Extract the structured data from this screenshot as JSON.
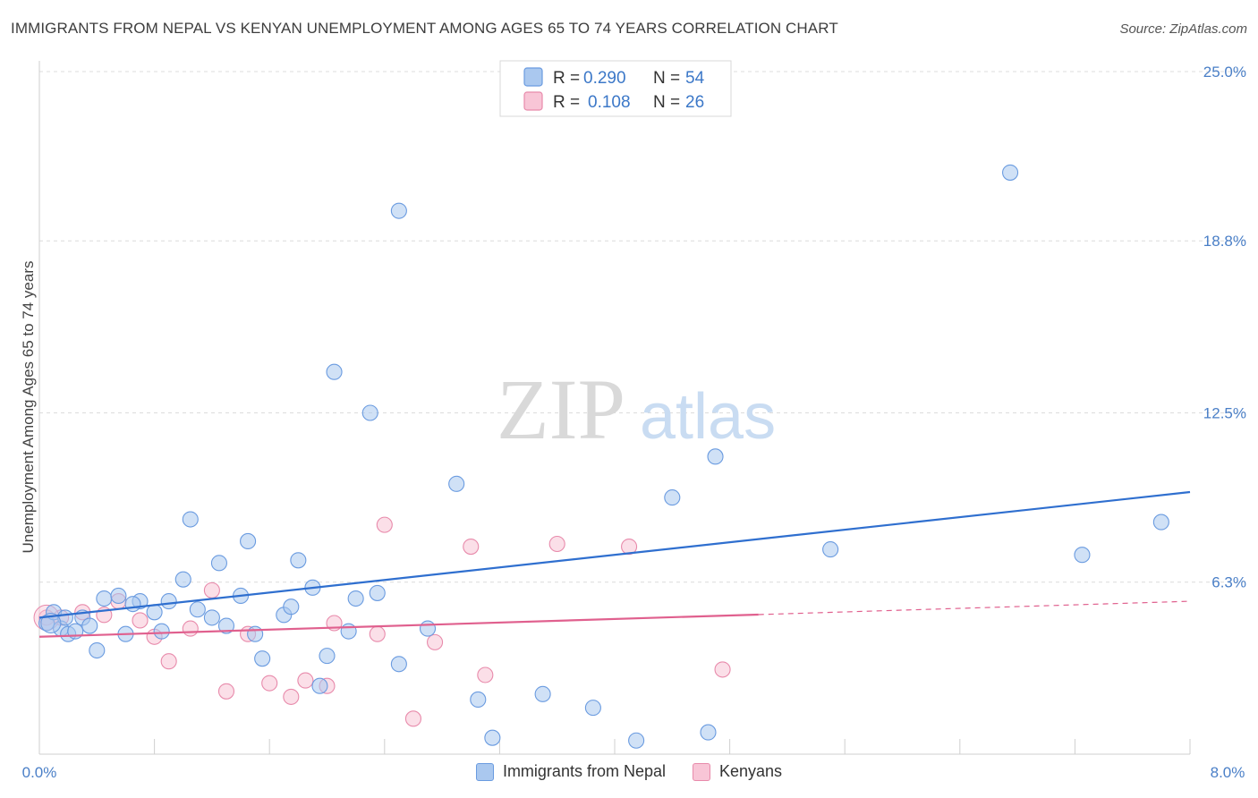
{
  "header": {
    "title": "IMMIGRANTS FROM NEPAL VS KENYAN UNEMPLOYMENT AMONG AGES 65 TO 74 YEARS CORRELATION CHART",
    "source": "Source: ZipAtlas.com"
  },
  "watermark": {
    "zip": "ZIP",
    "atlas": "atlas"
  },
  "legend": {
    "r_label": "R =",
    "n_label": "N =",
    "rows": [
      {
        "r": "0.290",
        "n": "54"
      },
      {
        "r": "0.108",
        "n": "26"
      }
    ]
  },
  "colors": {
    "nepal_fill": "#aac8ef",
    "nepal_stroke": "#6a9be0",
    "nepal_line": "#2f6fcf",
    "kenyan_fill": "#f8c5d6",
    "kenyan_stroke": "#e88aab",
    "kenyan_line": "#e0608e",
    "tick_text": "#4a7fc7",
    "grid": "#dcdcdc"
  },
  "chart_data": {
    "type": "scatter",
    "title": "IMMIGRANTS FROM NEPAL VS KENYAN UNEMPLOYMENT AMONG AGES 65 TO 74 YEARS CORRELATION CHART",
    "xlabel": "",
    "ylabel": "Unemployment Among Ages 65 to 74 years",
    "xlim": [
      0,
      8
    ],
    "ylim": [
      0,
      25
    ],
    "x_tick_labels": [
      "0.0%",
      "8.0%"
    ],
    "y_ticks": [
      6.3,
      12.5,
      18.8,
      25.0
    ],
    "y_tick_labels": [
      "6.3%",
      "12.5%",
      "18.8%",
      "25.0%"
    ],
    "grid": true,
    "series": [
      {
        "name": "Immigrants from Nepal",
        "r": 0.29,
        "n": 54,
        "trend": {
          "x0": 0,
          "y0": 5.0,
          "x1": 8,
          "y1": 9.6,
          "solid_until": 8
        },
        "points": [
          [
            0.05,
            4.8
          ],
          [
            0.1,
            5.2
          ],
          [
            0.15,
            4.6
          ],
          [
            0.2,
            4.4
          ],
          [
            0.3,
            5.0
          ],
          [
            0.35,
            4.7
          ],
          [
            0.45,
            5.7
          ],
          [
            0.55,
            5.8
          ],
          [
            0.6,
            4.4
          ],
          [
            0.7,
            5.6
          ],
          [
            0.8,
            5.2
          ],
          [
            0.85,
            4.5
          ],
          [
            0.9,
            5.6
          ],
          [
            1.0,
            6.4
          ],
          [
            1.05,
            8.6
          ],
          [
            1.1,
            5.3
          ],
          [
            1.2,
            5.0
          ],
          [
            1.25,
            7.0
          ],
          [
            1.3,
            4.7
          ],
          [
            1.4,
            5.8
          ],
          [
            1.45,
            7.8
          ],
          [
            1.5,
            4.4
          ],
          [
            1.55,
            3.5
          ],
          [
            1.7,
            5.1
          ],
          [
            1.75,
            5.4
          ],
          [
            1.8,
            7.1
          ],
          [
            1.9,
            6.1
          ],
          [
            1.95,
            2.5
          ],
          [
            2.0,
            3.6
          ],
          [
            2.05,
            14.0
          ],
          [
            2.15,
            4.5
          ],
          [
            2.2,
            5.7
          ],
          [
            2.3,
            12.5
          ],
          [
            2.35,
            5.9
          ],
          [
            2.5,
            3.3
          ],
          [
            2.5,
            19.9
          ],
          [
            2.7,
            4.6
          ],
          [
            2.9,
            9.9
          ],
          [
            3.05,
            2.0
          ],
          [
            3.15,
            0.6
          ],
          [
            3.5,
            2.2
          ],
          [
            3.85,
            1.7
          ],
          [
            4.15,
            0.5
          ],
          [
            4.4,
            9.4
          ],
          [
            4.65,
            0.8
          ],
          [
            4.7,
            10.9
          ],
          [
            5.5,
            7.5
          ],
          [
            6.75,
            21.3
          ],
          [
            7.25,
            7.3
          ],
          [
            7.8,
            8.5
          ],
          [
            0.18,
            5.0
          ],
          [
            0.25,
            4.5
          ],
          [
            0.4,
            3.8
          ],
          [
            0.65,
            5.5
          ]
        ]
      },
      {
        "name": "Kenyans",
        "r": 0.108,
        "n": 26,
        "trend": {
          "x0": 0,
          "y0": 4.3,
          "x1": 8,
          "y1": 5.6,
          "solid_until": 5.0
        },
        "points": [
          [
            0.05,
            5.0
          ],
          [
            0.15,
            5.0
          ],
          [
            0.3,
            5.2
          ],
          [
            0.45,
            5.1
          ],
          [
            0.55,
            5.6
          ],
          [
            0.7,
            4.9
          ],
          [
            0.8,
            4.3
          ],
          [
            0.9,
            3.4
          ],
          [
            1.05,
            4.6
          ],
          [
            1.2,
            6.0
          ],
          [
            1.3,
            2.3
          ],
          [
            1.45,
            4.4
          ],
          [
            1.6,
            2.6
          ],
          [
            1.75,
            2.1
          ],
          [
            1.85,
            2.7
          ],
          [
            2.0,
            2.5
          ],
          [
            2.05,
            4.8
          ],
          [
            2.35,
            4.4
          ],
          [
            2.4,
            8.4
          ],
          [
            2.6,
            1.3
          ],
          [
            2.75,
            4.1
          ],
          [
            3.0,
            7.6
          ],
          [
            3.1,
            2.9
          ],
          [
            3.6,
            7.7
          ],
          [
            4.1,
            7.6
          ],
          [
            4.75,
            3.1
          ]
        ]
      }
    ]
  },
  "bottom_legend": [
    "Immigrants from Nepal",
    "Kenyans"
  ]
}
